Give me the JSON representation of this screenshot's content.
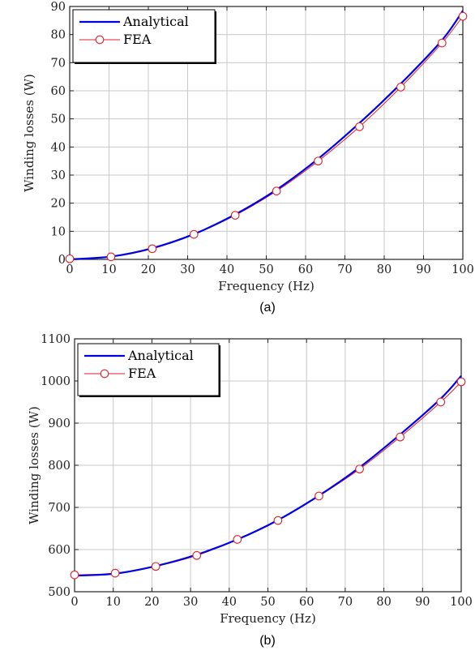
{
  "colors": {
    "analytical": "#0000e6",
    "fea": "#e0202a",
    "grid": "#c8c8c8",
    "axis": "#222222"
  },
  "legend": {
    "analytical": "Analytical",
    "fea": "FEA"
  },
  "chart_data": [
    {
      "type": "line",
      "caption": "(a)",
      "xlabel": "Frequency (Hz)",
      "ylabel": "Winding losses (W)",
      "xlim": [
        0,
        100
      ],
      "ylim": [
        0,
        90
      ],
      "xticks": [
        0,
        10,
        20,
        30,
        40,
        50,
        60,
        70,
        80,
        90,
        100
      ],
      "yticks": [
        0,
        10,
        20,
        30,
        40,
        50,
        60,
        70,
        80,
        90
      ],
      "grid": true,
      "legend_position": "top-left",
      "series": [
        {
          "name": "Analytical",
          "marker": "none",
          "x": [
            0,
            10.5,
            21,
            31.6,
            42.1,
            52.6,
            63.2,
            73.7,
            84.2,
            94.7,
            100
          ],
          "y": [
            0,
            1.0,
            4.0,
            9.0,
            16.0,
            24.8,
            35.8,
            48.5,
            62.5,
            78.0,
            88.5
          ]
        },
        {
          "name": "FEA",
          "marker": "circle",
          "x": [
            0,
            10.5,
            21,
            31.6,
            42.1,
            52.6,
            63.2,
            73.7,
            84.2,
            94.7,
            100
          ],
          "y": [
            0.2,
            0.9,
            3.8,
            8.9,
            15.7,
            24.3,
            35.0,
            47.2,
            61.3,
            77.0,
            86.5
          ]
        }
      ]
    },
    {
      "type": "line",
      "caption": "(b)",
      "xlabel": "Frequency (Hz)",
      "ylabel": "Winding losses (W)",
      "xlim": [
        0,
        100
      ],
      "ylim": [
        500,
        1100
      ],
      "xticks": [
        0,
        10,
        20,
        30,
        40,
        50,
        60,
        70,
        80,
        90,
        100
      ],
      "yticks": [
        500,
        600,
        700,
        800,
        900,
        1000,
        1100
      ],
      "grid": true,
      "legend_position": "top-left",
      "series": [
        {
          "name": "Analytical",
          "marker": "none",
          "x": [
            0,
            10.5,
            21,
            31.6,
            42.1,
            52.6,
            63.2,
            73.7,
            84.2,
            94.7,
            100
          ],
          "y": [
            538,
            543,
            561,
            588,
            624,
            670,
            728,
            795,
            873,
            958,
            1012
          ]
        },
        {
          "name": "FEA",
          "marker": "circle",
          "x": [
            0,
            10.5,
            21,
            31.6,
            42.1,
            52.6,
            63.2,
            73.7,
            84.2,
            94.7,
            100
          ],
          "y": [
            540,
            544,
            560,
            586,
            624,
            669,
            727,
            791,
            867,
            950,
            998
          ]
        }
      ]
    }
  ]
}
